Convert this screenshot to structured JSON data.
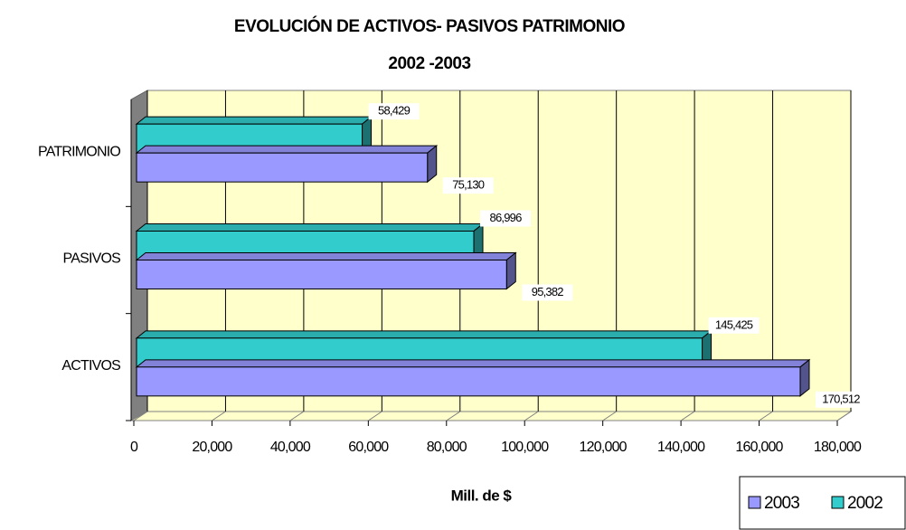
{
  "chart_data": {
    "type": "bar",
    "orientation": "horizontal",
    "title": "EVOLUCIÓN DE ACTIVOS- PASIVOS PATRIMONIO",
    "subtitle": "2002 -2003",
    "x_label": "Mill. de $",
    "categories": [
      "ACTIVOS",
      "PASIVOS",
      "PATRIMONIO"
    ],
    "series": [
      {
        "name": "2003",
        "color": "#9999ff",
        "values": [
          170512,
          95382,
          75130
        ],
        "value_labels": [
          "170,512",
          "95,382",
          "75,130"
        ]
      },
      {
        "name": "2002",
        "color": "#33cccc",
        "values": [
          145425,
          86996,
          58429
        ],
        "value_labels": [
          "145,425",
          "86,996",
          "58,429"
        ]
      }
    ],
    "xlim": [
      0,
      180000
    ],
    "xticks": [
      0,
      {
        "value": 20000,
        "label": "20,000"
      },
      {
        "value": 40000,
        "label": "40,000"
      },
      {
        "value": 60000,
        "label": "60,000"
      },
      {
        "value": 80000,
        "label": "80,000"
      },
      {
        "value": 100000,
        "label": "100,000"
      },
      {
        "value": 120000,
        "label": "120,000"
      },
      {
        "value": 140000,
        "label": "140,000"
      },
      {
        "value": 160000,
        "label": "160,000"
      },
      {
        "value": 180000,
        "label": "180,000"
      }
    ],
    "grid": true,
    "legend": "bottom-right"
  }
}
